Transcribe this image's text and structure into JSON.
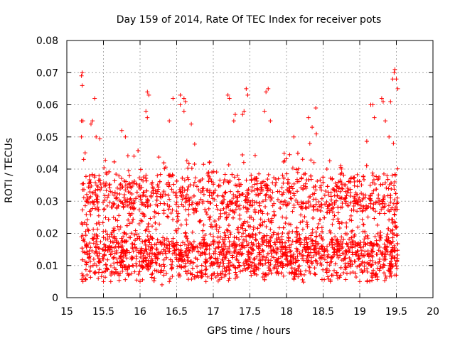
{
  "chart_data": {
    "type": "scatter",
    "title": "Day 159 of 2014, Rate Of TEC Index for receiver pots",
    "xlabel": "GPS time / hours",
    "ylabel": "ROTI / TECUs",
    "xlim": [
      15,
      20
    ],
    "ylim": [
      0,
      0.08
    ],
    "x_ticks": [
      "15",
      "15.5",
      "16",
      "16.5",
      "17",
      "17.5",
      "18",
      "18.5",
      "19",
      "19.5",
      "20"
    ],
    "y_ticks": [
      "0",
      "0.01",
      "0.02",
      "0.03",
      "0.04",
      "0.05",
      "0.06",
      "0.07",
      "0.08"
    ],
    "grid": true,
    "marker": "+",
    "marker_color": "#ff0000",
    "series": [
      {
        "name": "ROTI",
        "x_range": [
          15.2,
          19.52
        ],
        "points": [
          [
            15.2,
            0.069
          ],
          [
            15.21,
            0.07
          ],
          [
            15.21,
            0.066
          ],
          [
            15.2,
            0.055
          ],
          [
            15.22,
            0.055
          ],
          [
            15.2,
            0.05
          ],
          [
            15.23,
            0.043
          ],
          [
            15.35,
            0.055
          ],
          [
            15.33,
            0.054
          ],
          [
            15.38,
            0.062
          ],
          [
            15.4,
            0.05
          ],
          [
            15.75,
            0.052
          ],
          [
            15.8,
            0.05
          ],
          [
            16.1,
            0.064
          ],
          [
            16.12,
            0.063
          ],
          [
            16.08,
            0.058
          ],
          [
            16.1,
            0.056
          ],
          [
            16.45,
            0.062
          ],
          [
            16.55,
            0.063
          ],
          [
            16.6,
            0.062
          ],
          [
            16.62,
            0.061
          ],
          [
            16.55,
            0.06
          ],
          [
            16.6,
            0.058
          ],
          [
            16.4,
            0.055
          ],
          [
            16.7,
            0.054
          ],
          [
            17.2,
            0.063
          ],
          [
            17.22,
            0.062
          ],
          [
            17.3,
            0.057
          ],
          [
            17.28,
            0.055
          ],
          [
            17.45,
            0.065
          ],
          [
            17.47,
            0.063
          ],
          [
            17.42,
            0.058
          ],
          [
            17.4,
            0.057
          ],
          [
            17.72,
            0.064
          ],
          [
            17.75,
            0.065
          ],
          [
            17.7,
            0.058
          ],
          [
            17.78,
            0.055
          ],
          [
            18.1,
            0.05
          ],
          [
            18.3,
            0.056
          ],
          [
            18.4,
            0.059
          ],
          [
            18.35,
            0.053
          ],
          [
            19.15,
            0.06
          ],
          [
            19.18,
            0.06
          ],
          [
            19.3,
            0.062
          ],
          [
            19.32,
            0.061
          ],
          [
            19.2,
            0.056
          ],
          [
            19.45,
            0.068
          ],
          [
            19.47,
            0.07
          ],
          [
            19.48,
            0.071
          ],
          [
            19.5,
            0.068
          ],
          [
            19.52,
            0.065
          ],
          [
            19.42,
            0.061
          ],
          [
            19.35,
            0.055
          ],
          [
            19.4,
            0.05
          ],
          [
            19.46,
            0.048
          ],
          [
            15.22,
            0.005
          ],
          [
            15.25,
            0.006
          ],
          [
            15.5,
            0.005
          ],
          [
            15.6,
            0.005
          ],
          [
            16.0,
            0.005
          ],
          [
            16.3,
            0.004
          ],
          [
            16.4,
            0.005
          ],
          [
            16.9,
            0.005
          ],
          [
            17.3,
            0.006
          ],
          [
            18.6,
            0.005
          ],
          [
            18.7,
            0.006
          ],
          [
            19.0,
            0.005
          ],
          [
            19.1,
            0.005
          ],
          [
            19.5,
            0.007
          ]
        ]
      }
    ]
  }
}
